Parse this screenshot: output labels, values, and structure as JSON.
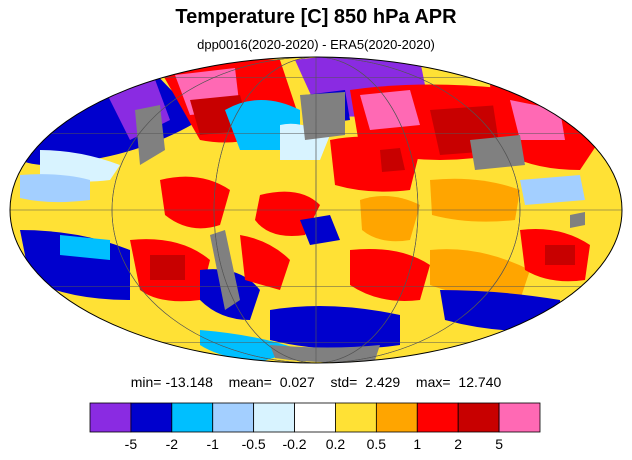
{
  "title": "Temperature [C] 850 hPa APR",
  "subtitle": "dpp0016(2020-2020) - ERA5(2020-2020)",
  "stats": {
    "min_label": "min=",
    "min": "-13.148",
    "mean_label": "mean=",
    "mean": "0.027",
    "std_label": "std=",
    "std": "2.429",
    "max_label": "max=",
    "max": "12.740"
  },
  "colorbar": {
    "colors": [
      "#8a2be2",
      "#0000cd",
      "#00bfff",
      "#a3cfff",
      "#d8f3ff",
      "#ffffff",
      "#ffe135",
      "#ffa500",
      "#ff0000",
      "#c80000",
      "#ff69b4"
    ],
    "labels": [
      "-5",
      "-2",
      "-1",
      "-0.5",
      "-0.2",
      "0.2",
      "0.5",
      "1",
      "2",
      "5"
    ]
  },
  "map": {
    "projection": "mollweide",
    "missing_color": "#808080",
    "ocean_base_color": "#ffe135"
  }
}
